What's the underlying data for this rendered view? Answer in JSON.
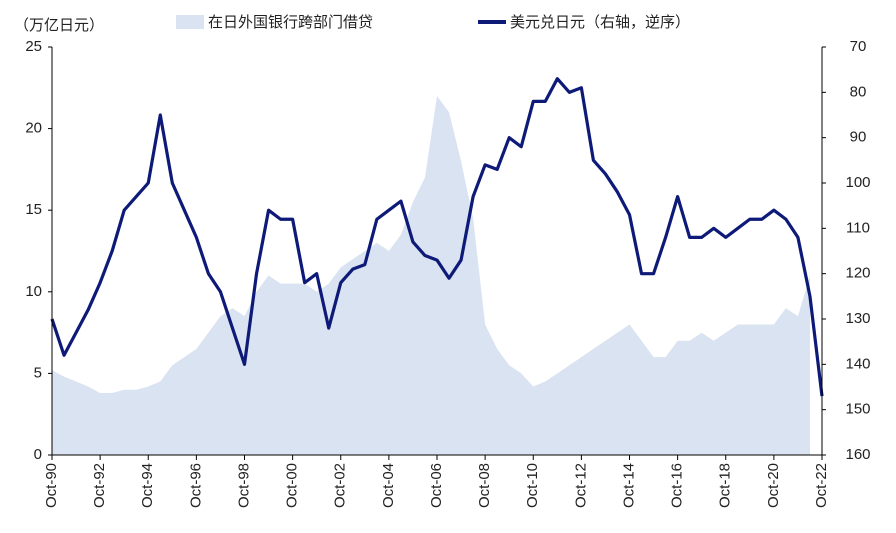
{
  "chart_data": {
    "type": "area-line",
    "y_label": "（万亿日元）",
    "x": [
      1990.75,
      1991.25,
      1991.75,
      1992.25,
      1992.75,
      1993.25,
      1993.75,
      1994.25,
      1994.75,
      1995.25,
      1995.75,
      1996.25,
      1996.75,
      1997.25,
      1997.75,
      1998.25,
      1998.75,
      1999.25,
      1999.75,
      2000.25,
      2000.75,
      2001.25,
      2001.75,
      2002.25,
      2002.75,
      2003.25,
      2003.75,
      2004.25,
      2004.75,
      2005.25,
      2005.75,
      2006.25,
      2006.75,
      2007.25,
      2007.75,
      2008.25,
      2008.75,
      2009.25,
      2009.75,
      2010.25,
      2010.75,
      2011.25,
      2011.75,
      2012.25,
      2012.75,
      2013.25,
      2013.75,
      2014.25,
      2014.75,
      2015.25,
      2015.75,
      2016.25,
      2016.75,
      2017.25,
      2017.75,
      2018.25,
      2018.75,
      2019.25,
      2019.75,
      2020.25,
      2020.75,
      2021.25,
      2021.75,
      2022.25,
      2022.75
    ],
    "series": [
      {
        "name": "在日外国银行跨部门借贷",
        "color": "#dae3f1",
        "kind": "area",
        "axis": "y",
        "values": [
          5.2,
          4.8,
          4.5,
          4.2,
          3.8,
          3.8,
          4.0,
          4.0,
          4.2,
          4.5,
          5.5,
          6.0,
          6.5,
          7.5,
          8.5,
          9.0,
          8.5,
          10.0,
          11.0,
          10.5,
          10.5,
          10.5,
          10.0,
          10.5,
          11.5,
          12.0,
          12.5,
          13.0,
          12.5,
          13.5,
          15.5,
          17.0,
          22.0,
          21.0,
          18.0,
          14.5,
          8.0,
          6.5,
          5.5,
          5.0,
          4.2,
          4.5,
          5.0,
          5.5,
          6.0,
          6.5,
          7.0,
          7.5,
          8.0,
          7.0,
          6.0,
          6.0,
          7.0,
          7.0,
          7.5,
          7.0,
          7.5,
          8.0,
          8.0,
          8.0,
          8.0,
          9.0,
          8.5,
          11.0,
          null
        ]
      },
      {
        "name": "美元兑日元（右轴，逆序）",
        "color": "#0e1a78",
        "kind": "line",
        "axis": "y2",
        "values": [
          130,
          138,
          133,
          128,
          122,
          115,
          106,
          103,
          100,
          85,
          100,
          106,
          112,
          120,
          124,
          132,
          140,
          120,
          106,
          108,
          108,
          122,
          120,
          132,
          122,
          119,
          118,
          108,
          106,
          104,
          113,
          116,
          117,
          121,
          117,
          103,
          96,
          97,
          90,
          92,
          82,
          82,
          77,
          80,
          79,
          95,
          98,
          102,
          107,
          120,
          120,
          112,
          103,
          112,
          112,
          110,
          112,
          110,
          108,
          108,
          106,
          108,
          112,
          125,
          147
        ]
      }
    ],
    "xlim": [
      1990.75,
      2022.75
    ],
    "xticks": [
      {
        "value": 1990.75,
        "label": "Oct-90"
      },
      {
        "value": 1992.75,
        "label": "Oct-92"
      },
      {
        "value": 1994.75,
        "label": "Oct-94"
      },
      {
        "value": 1996.75,
        "label": "Oct-96"
      },
      {
        "value": 1998.75,
        "label": "Oct-98"
      },
      {
        "value": 2000.75,
        "label": "Oct-00"
      },
      {
        "value": 2002.75,
        "label": "Oct-02"
      },
      {
        "value": 2004.75,
        "label": "Oct-04"
      },
      {
        "value": 2006.75,
        "label": "Oct-06"
      },
      {
        "value": 2008.75,
        "label": "Oct-08"
      },
      {
        "value": 2010.75,
        "label": "Oct-10"
      },
      {
        "value": 2012.75,
        "label": "Oct-12"
      },
      {
        "value": 2014.75,
        "label": "Oct-14"
      },
      {
        "value": 2016.75,
        "label": "Oct-16"
      },
      {
        "value": 2018.75,
        "label": "Oct-18"
      },
      {
        "value": 2020.75,
        "label": "Oct-20"
      },
      {
        "value": 2022.75,
        "label": "Oct-22"
      }
    ],
    "ylim": [
      0,
      25
    ],
    "yticks": [
      0,
      5,
      10,
      15,
      20,
      25
    ],
    "y2lim": [
      70,
      160
    ],
    "y2ticks": [
      70,
      80,
      90,
      100,
      110,
      120,
      130,
      140,
      150,
      160
    ],
    "y2_reverse": true,
    "grid": false,
    "legend": "top"
  }
}
